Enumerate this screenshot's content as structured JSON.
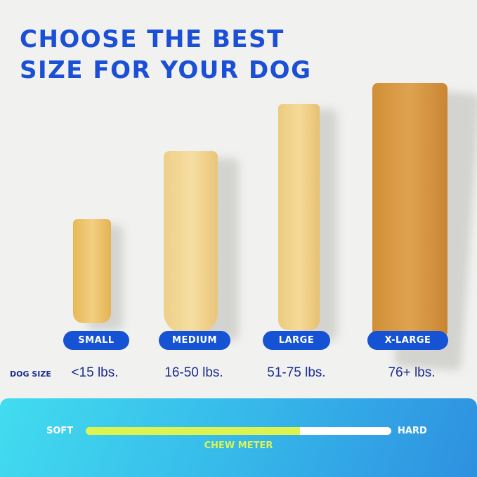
{
  "title": {
    "line1": "CHOOSE THE BEST",
    "line2": "SIZE FOR YOUR DOG"
  },
  "sizes": [
    {
      "label": "SMALL",
      "weight": "<15 lbs."
    },
    {
      "label": "MEDIUM",
      "weight": "16-50 lbs."
    },
    {
      "label": "LARGE",
      "weight": "51-75 lbs."
    },
    {
      "label": "X-LARGE",
      "weight": "76+ lbs."
    }
  ],
  "dog_size_label": "DOG SIZE",
  "chew_meter": {
    "label": "CHEW METER",
    "min_label": "SOFT",
    "max_label": "HARD",
    "level_percent": 70
  },
  "colors": {
    "brand_blue": "#1553d4",
    "meter_fill": "#ddf450"
  }
}
